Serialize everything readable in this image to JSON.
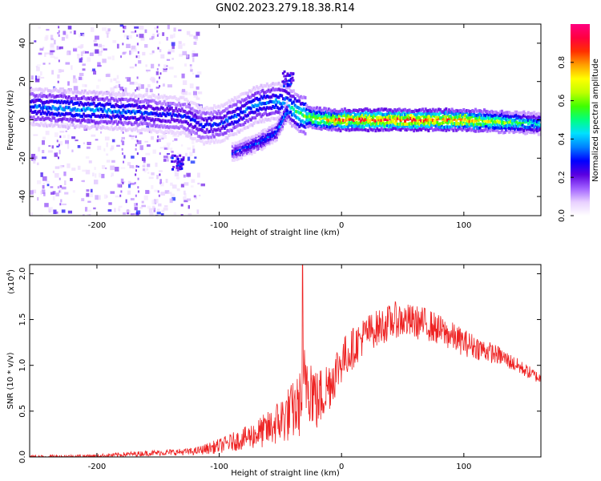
{
  "title": "GN02.2023.279.18.38.R14",
  "chart_data": [
    {
      "type": "heatmap",
      "xlabel": "Height of straight line (km)",
      "ylabel": "Frequency (Hz)",
      "xlim": [
        -255,
        163
      ],
      "ylim": [
        -50,
        50
      ],
      "xticks": [
        -200,
        -100,
        0,
        100
      ],
      "yticks": [
        -40,
        -20,
        0,
        20,
        40
      ],
      "colorbar": {
        "label": "Normalized spectral amplitude",
        "range": [
          0,
          1
        ],
        "ticks": [
          "0.0",
          "0.2",
          "0.4",
          "0.6",
          "0.8"
        ],
        "colormap": [
          "#ffffff",
          "#e8d0ff",
          "#a060ff",
          "#5a00e0",
          "#0000ff",
          "#0080ff",
          "#00e0ff",
          "#00ff80",
          "#40ff00",
          "#c0ff00",
          "#ffff00",
          "#ffa000",
          "#ff3000",
          "#ff0040",
          "#ff0080"
        ]
      },
      "ridge": [
        {
          "x": -255,
          "freq": 7,
          "amp": 0.35
        },
        {
          "x": -230,
          "freq": 6,
          "amp": 0.4
        },
        {
          "x": -200,
          "freq": 5,
          "amp": 0.4
        },
        {
          "x": -170,
          "freq": 4,
          "amp": 0.35
        },
        {
          "x": -150,
          "freq": 3,
          "amp": 0.3
        },
        {
          "x": -130,
          "freq": 2,
          "amp": 0.3
        },
        {
          "x": -115,
          "freq": -3,
          "amp": 0.3
        },
        {
          "x": -100,
          "freq": -2,
          "amp": 0.32
        },
        {
          "x": -85,
          "freq": 3,
          "amp": 0.35
        },
        {
          "x": -70,
          "freq": 8,
          "amp": 0.38
        },
        {
          "x": -55,
          "freq": 10,
          "amp": 0.4
        },
        {
          "x": -45,
          "freq": 8,
          "amp": 0.45
        },
        {
          "x": -35,
          "freq": 3,
          "amp": 0.6
        },
        {
          "x": -25,
          "freq": 1,
          "amp": 0.7
        },
        {
          "x": -10,
          "freq": 0,
          "amp": 0.8
        },
        {
          "x": 0,
          "freq": 0,
          "amp": 0.9
        },
        {
          "x": 50,
          "freq": 0,
          "amp": 0.95
        },
        {
          "x": 100,
          "freq": 0,
          "amp": 0.85
        },
        {
          "x": 130,
          "freq": -1,
          "amp": 0.65
        },
        {
          "x": 163,
          "freq": -2,
          "amp": 0.45
        }
      ],
      "branch": [
        {
          "x": -90,
          "freq": -17,
          "amp": 0.3
        },
        {
          "x": -70,
          "freq": -12,
          "amp": 0.35
        },
        {
          "x": -55,
          "freq": -7,
          "amp": 0.38
        },
        {
          "x": -45,
          "freq": 5,
          "amp": 0.4
        }
      ],
      "blobs": [
        {
          "x": -135,
          "freq": -22,
          "amp": 0.3
        },
        {
          "x": -45,
          "freq": 22,
          "amp": 0.3
        }
      ]
    },
    {
      "type": "line",
      "xlabel": "Height of straight line (km)",
      "ylabel": "SNR (10 * v/v)",
      "exponent_label": "(x10",
      "exponent_power": "4",
      "exponent_close": ")",
      "xlim": [
        -255,
        163
      ],
      "ylim": [
        0,
        2.1
      ],
      "xticks": [
        -200,
        -100,
        0,
        100
      ],
      "yticks": [
        "0.0",
        "0.5",
        "1.0",
        "1.5",
        "2.0"
      ],
      "color": "#ee2222",
      "envelope": [
        {
          "x": -255,
          "mean": 0.0,
          "noise": 0.02
        },
        {
          "x": -200,
          "mean": 0.01,
          "noise": 0.02
        },
        {
          "x": -160,
          "mean": 0.04,
          "noise": 0.03
        },
        {
          "x": -120,
          "mean": 0.06,
          "noise": 0.04
        },
        {
          "x": -100,
          "mean": 0.12,
          "noise": 0.08
        },
        {
          "x": -80,
          "mean": 0.2,
          "noise": 0.12
        },
        {
          "x": -60,
          "mean": 0.3,
          "noise": 0.2
        },
        {
          "x": -45,
          "mean": 0.45,
          "noise": 0.3
        },
        {
          "x": -35,
          "mean": 0.55,
          "noise": 0.35
        },
        {
          "x": -28,
          "mean": 0.9,
          "noise": 0.5
        },
        {
          "x": -20,
          "mean": 0.6,
          "noise": 0.35
        },
        {
          "x": -10,
          "mean": 0.8,
          "noise": 0.3
        },
        {
          "x": 0,
          "mean": 1.05,
          "noise": 0.25
        },
        {
          "x": 20,
          "mean": 1.35,
          "noise": 0.2
        },
        {
          "x": 45,
          "mean": 1.5,
          "noise": 0.2
        },
        {
          "x": 70,
          "mean": 1.45,
          "noise": 0.18
        },
        {
          "x": 100,
          "mean": 1.25,
          "noise": 0.15
        },
        {
          "x": 130,
          "mean": 1.1,
          "noise": 0.1
        },
        {
          "x": 163,
          "mean": 0.85,
          "noise": 0.06
        }
      ],
      "spike": {
        "x": -32,
        "value": 2.1
      }
    }
  ]
}
